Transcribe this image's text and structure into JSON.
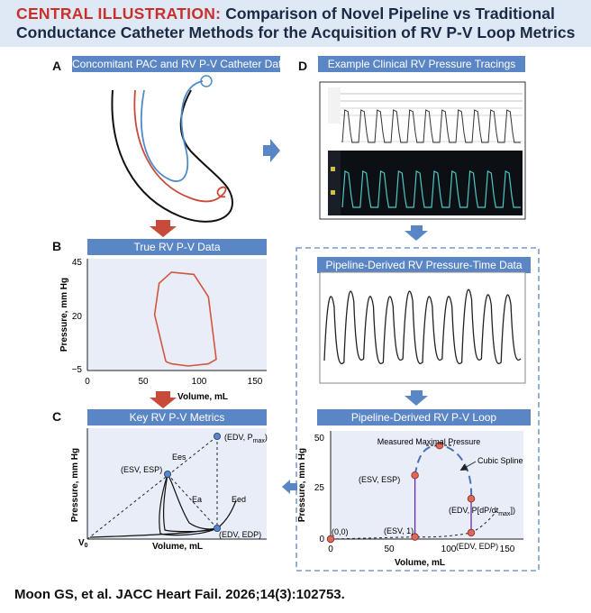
{
  "header": {
    "kicker": "CENTRAL ILLUSTRATION:",
    "title_line1": "Comparison of Novel Pipeline vs Traditional",
    "title_line2": "Conductance Catheter Methods for the Acquisition of RV P-V Loop Metrics"
  },
  "panels": {
    "a": {
      "letter": "A",
      "title": "Concomitant PAC and RV P-V Catheter Data"
    },
    "b": {
      "letter": "B",
      "title": "True RV P-V Data",
      "ylabel": "Pressure, mm Hg",
      "xlabel": "Volume, mL",
      "yticks": [
        "45",
        "20",
        "−5"
      ],
      "xticks": [
        "0",
        "50",
        "100",
        "150"
      ]
    },
    "c": {
      "letter": "C",
      "title": "Key RV P-V Metrics",
      "ylabel": "Pressure, mm Hg",
      "xlabel": "Volume, mL",
      "v0": "V",
      "v0_sub": "0",
      "labels": {
        "edv_pmax_pre": "(EDV, P",
        "edv_pmax_sub": "max",
        "edv_pmax_post": ")",
        "esv_esp": "(ESV, ESP)",
        "ees": "Ees",
        "ea": "Ea",
        "eed": "Eed",
        "edv_edp": "(EDV, EDP)"
      }
    },
    "d": {
      "letter": "D",
      "title": "Example Clinical RV Pressure Tracings"
    },
    "e": {
      "title": "Pipeline-Derived RV Pressure-Time Data"
    },
    "f": {
      "title": "Pipeline-Derived RV P-V Loop",
      "ylabel": "Pressure, mm Hg",
      "xlabel": "Volume, mL",
      "yticks": [
        "50",
        "25",
        "0"
      ],
      "xticks": [
        "0",
        "50",
        "100",
        "150"
      ],
      "labels": {
        "measured_max": "Measured Maximal Pressure",
        "cubic_spline": "Cubic Spline",
        "esv_esp": "(ESV, ESP)",
        "edv_dpdt_pre": "(EDV, P[dP/dt",
        "edv_dpdt_sub": "max",
        "edv_dpdt_post": "])",
        "origin": "(0,0)",
        "esv_1": "(ESV, 1)",
        "edv_edp": "(EDV, EDP)"
      }
    }
  },
  "footer": {
    "citation": "Moon GS, et al. JACC Heart Fail. 2026;14(3):102753."
  },
  "chart_data": [
    {
      "type": "line",
      "title": "True RV P-V Data",
      "xlabel": "Volume, mL",
      "ylabel": "Pressure, mm Hg",
      "xlim": [
        0,
        160
      ],
      "ylim": [
        -5,
        45
      ],
      "series": [
        {
          "name": "RV P-V loop",
          "x": [
            70,
            60,
            64,
            75,
            95,
            108,
            112,
            115,
            108,
            90,
            75,
            70
          ],
          "y": [
            -1,
            20,
            34,
            39,
            38,
            28,
            12,
            0,
            -2,
            -3,
            -2,
            -1
          ]
        }
      ]
    },
    {
      "type": "line",
      "title": "Pipeline-Derived RV P-V Loop",
      "xlabel": "Volume, mL",
      "ylabel": "Pressure, mm Hg",
      "xlim": [
        0,
        160
      ],
      "ylim": [
        0,
        50
      ],
      "series": [
        {
          "name": "Key points",
          "x": [
            0,
            72,
            72,
            93,
            120,
            120
          ],
          "y": [
            0,
            1,
            30,
            44,
            19,
            3
          ]
        },
        {
          "name": "Cubic spline",
          "x": [
            72,
            82,
            93,
            108,
            120
          ],
          "y": [
            30,
            41,
            44,
            36,
            19
          ]
        }
      ]
    }
  ],
  "colors": {
    "accent": "#5b86c5",
    "kicker": "#c8302a",
    "header_bg": "#dfe8f5",
    "plot_bg": "#e8edf7",
    "loop_red": "#d4553f",
    "spline_blue": "#4d6fb3",
    "point_fill": "#e0675a"
  }
}
